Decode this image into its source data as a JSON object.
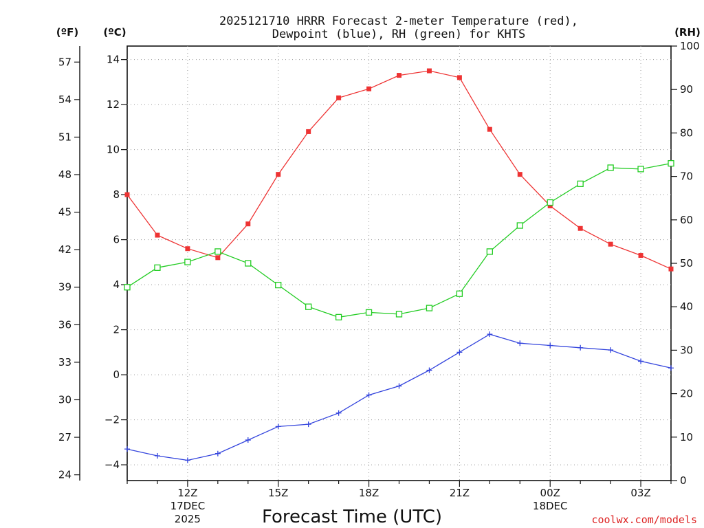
{
  "chart_data": {
    "type": "line",
    "title": [
      "2025121710 HRRR Forecast 2-meter Temperature (red),",
      "Dewpoint (blue), RH (green) for KHTS"
    ],
    "xlabel": "Forecast Time (UTC)",
    "ylabel_left_f": "(ºF)",
    "ylabel_left_c": "(ºC)",
    "ylabel_right": "(RH)",
    "credit": "coolwx.com/models",
    "x_hours": [
      10,
      11,
      12,
      13,
      14,
      15,
      16,
      17,
      18,
      19,
      20,
      21,
      22,
      23,
      24,
      25,
      26,
      27,
      28
    ],
    "x_ticks": [
      {
        "hour": 12,
        "lines": [
          "12Z",
          "17DEC",
          "2025"
        ]
      },
      {
        "hour": 15,
        "lines": [
          "15Z"
        ]
      },
      {
        "hour": 18,
        "lines": [
          "18Z"
        ]
      },
      {
        "hour": 21,
        "lines": [
          "21Z"
        ]
      },
      {
        "hour": 24,
        "lines": [
          "00Z",
          "18DEC"
        ]
      },
      {
        "hour": 27,
        "lines": [
          "03Z"
        ]
      }
    ],
    "xlim": [
      10,
      28
    ],
    "ylim_c": [
      -4.7,
      14.6
    ],
    "yticks_c": [
      -4,
      -2,
      0,
      2,
      4,
      6,
      8,
      10,
      12,
      14
    ],
    "yticks_f": [
      24,
      27,
      30,
      33,
      36,
      39,
      42,
      45,
      48,
      51,
      54,
      57
    ],
    "ylim_rh": [
      0,
      100
    ],
    "yticks_rh": [
      0,
      10,
      20,
      30,
      40,
      50,
      60,
      70,
      80,
      90,
      100
    ],
    "grid": true,
    "series": [
      {
        "name": "Temperature",
        "unit": "C",
        "axis": "left",
        "color": "#ee3333",
        "marker": "filled-square",
        "values": [
          8.0,
          6.2,
          5.6,
          5.2,
          6.7,
          8.9,
          10.8,
          12.3,
          12.7,
          13.3,
          13.5,
          13.2,
          10.9,
          8.9,
          7.5,
          6.5,
          5.8,
          5.3,
          4.7
        ]
      },
      {
        "name": "Dewpoint",
        "unit": "C",
        "axis": "left",
        "color": "#3344dd",
        "marker": "plus",
        "values": [
          -3.3,
          -3.6,
          -3.8,
          -3.5,
          -2.9,
          -2.3,
          -2.2,
          -1.7,
          -0.9,
          -0.5,
          0.2,
          1.0,
          1.8,
          1.4,
          1.3,
          1.2,
          1.1,
          0.6,
          0.3
        ]
      },
      {
        "name": "RH",
        "unit": "%",
        "axis": "right",
        "color": "#22cc22",
        "marker": "open-square",
        "values": [
          44.5,
          49.0,
          50.3,
          52.7,
          50.0,
          45.0,
          40.0,
          37.6,
          38.7,
          38.3,
          39.7,
          43.0,
          52.7,
          58.7,
          64.0,
          68.3,
          72.0,
          71.7,
          73.0
        ]
      }
    ]
  }
}
